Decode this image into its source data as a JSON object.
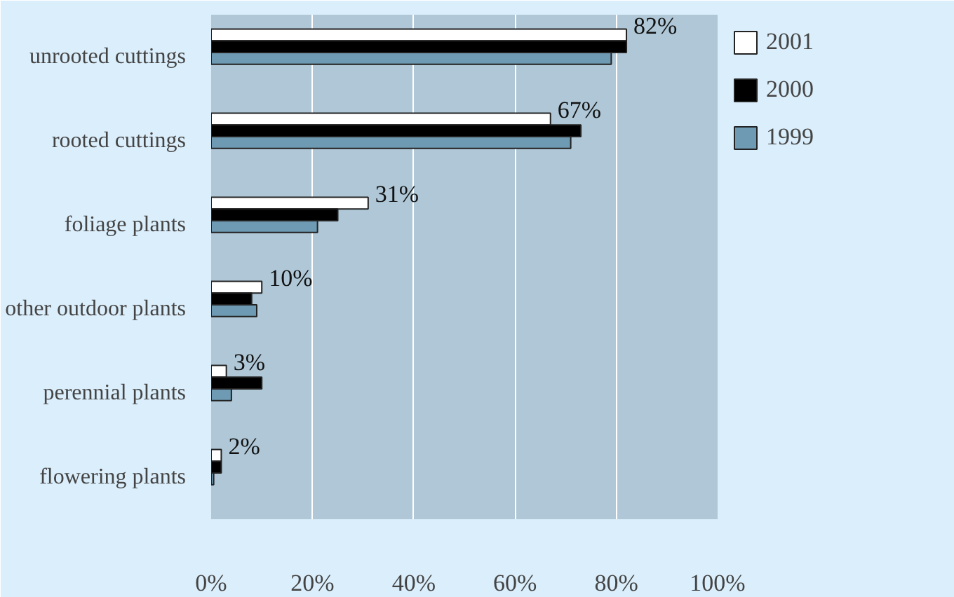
{
  "chart_data": {
    "type": "bar",
    "orientation": "horizontal",
    "categories": [
      "unrooted cuttings",
      "rooted cuttings",
      "foliage plants",
      "other outdoor plants",
      "perennial plants",
      "flowering plants"
    ],
    "series": [
      {
        "name": "2001",
        "color": "#ffffff",
        "values": [
          82,
          67,
          31,
          10,
          3,
          2
        ],
        "value_labels": [
          "82%",
          "67%",
          "31%",
          "10%",
          "3%",
          "2%"
        ]
      },
      {
        "name": "2000",
        "color": "#000000",
        "values": [
          82,
          73,
          25,
          8,
          10,
          2
        ]
      },
      {
        "name": "1999",
        "color": "#6f9ab3",
        "values": [
          79,
          71,
          21,
          9,
          4,
          0.5
        ]
      }
    ],
    "xlim": [
      0,
      100
    ],
    "xticks": [
      {
        "value": 0,
        "label": "0%"
      },
      {
        "value": 20,
        "label": "20%"
      },
      {
        "value": 40,
        "label": "40%"
      },
      {
        "value": 60,
        "label": "60%"
      },
      {
        "value": 80,
        "label": "80%"
      },
      {
        "value": 100,
        "label": "100%"
      }
    ],
    "grid": "x",
    "legend": "top right"
  }
}
